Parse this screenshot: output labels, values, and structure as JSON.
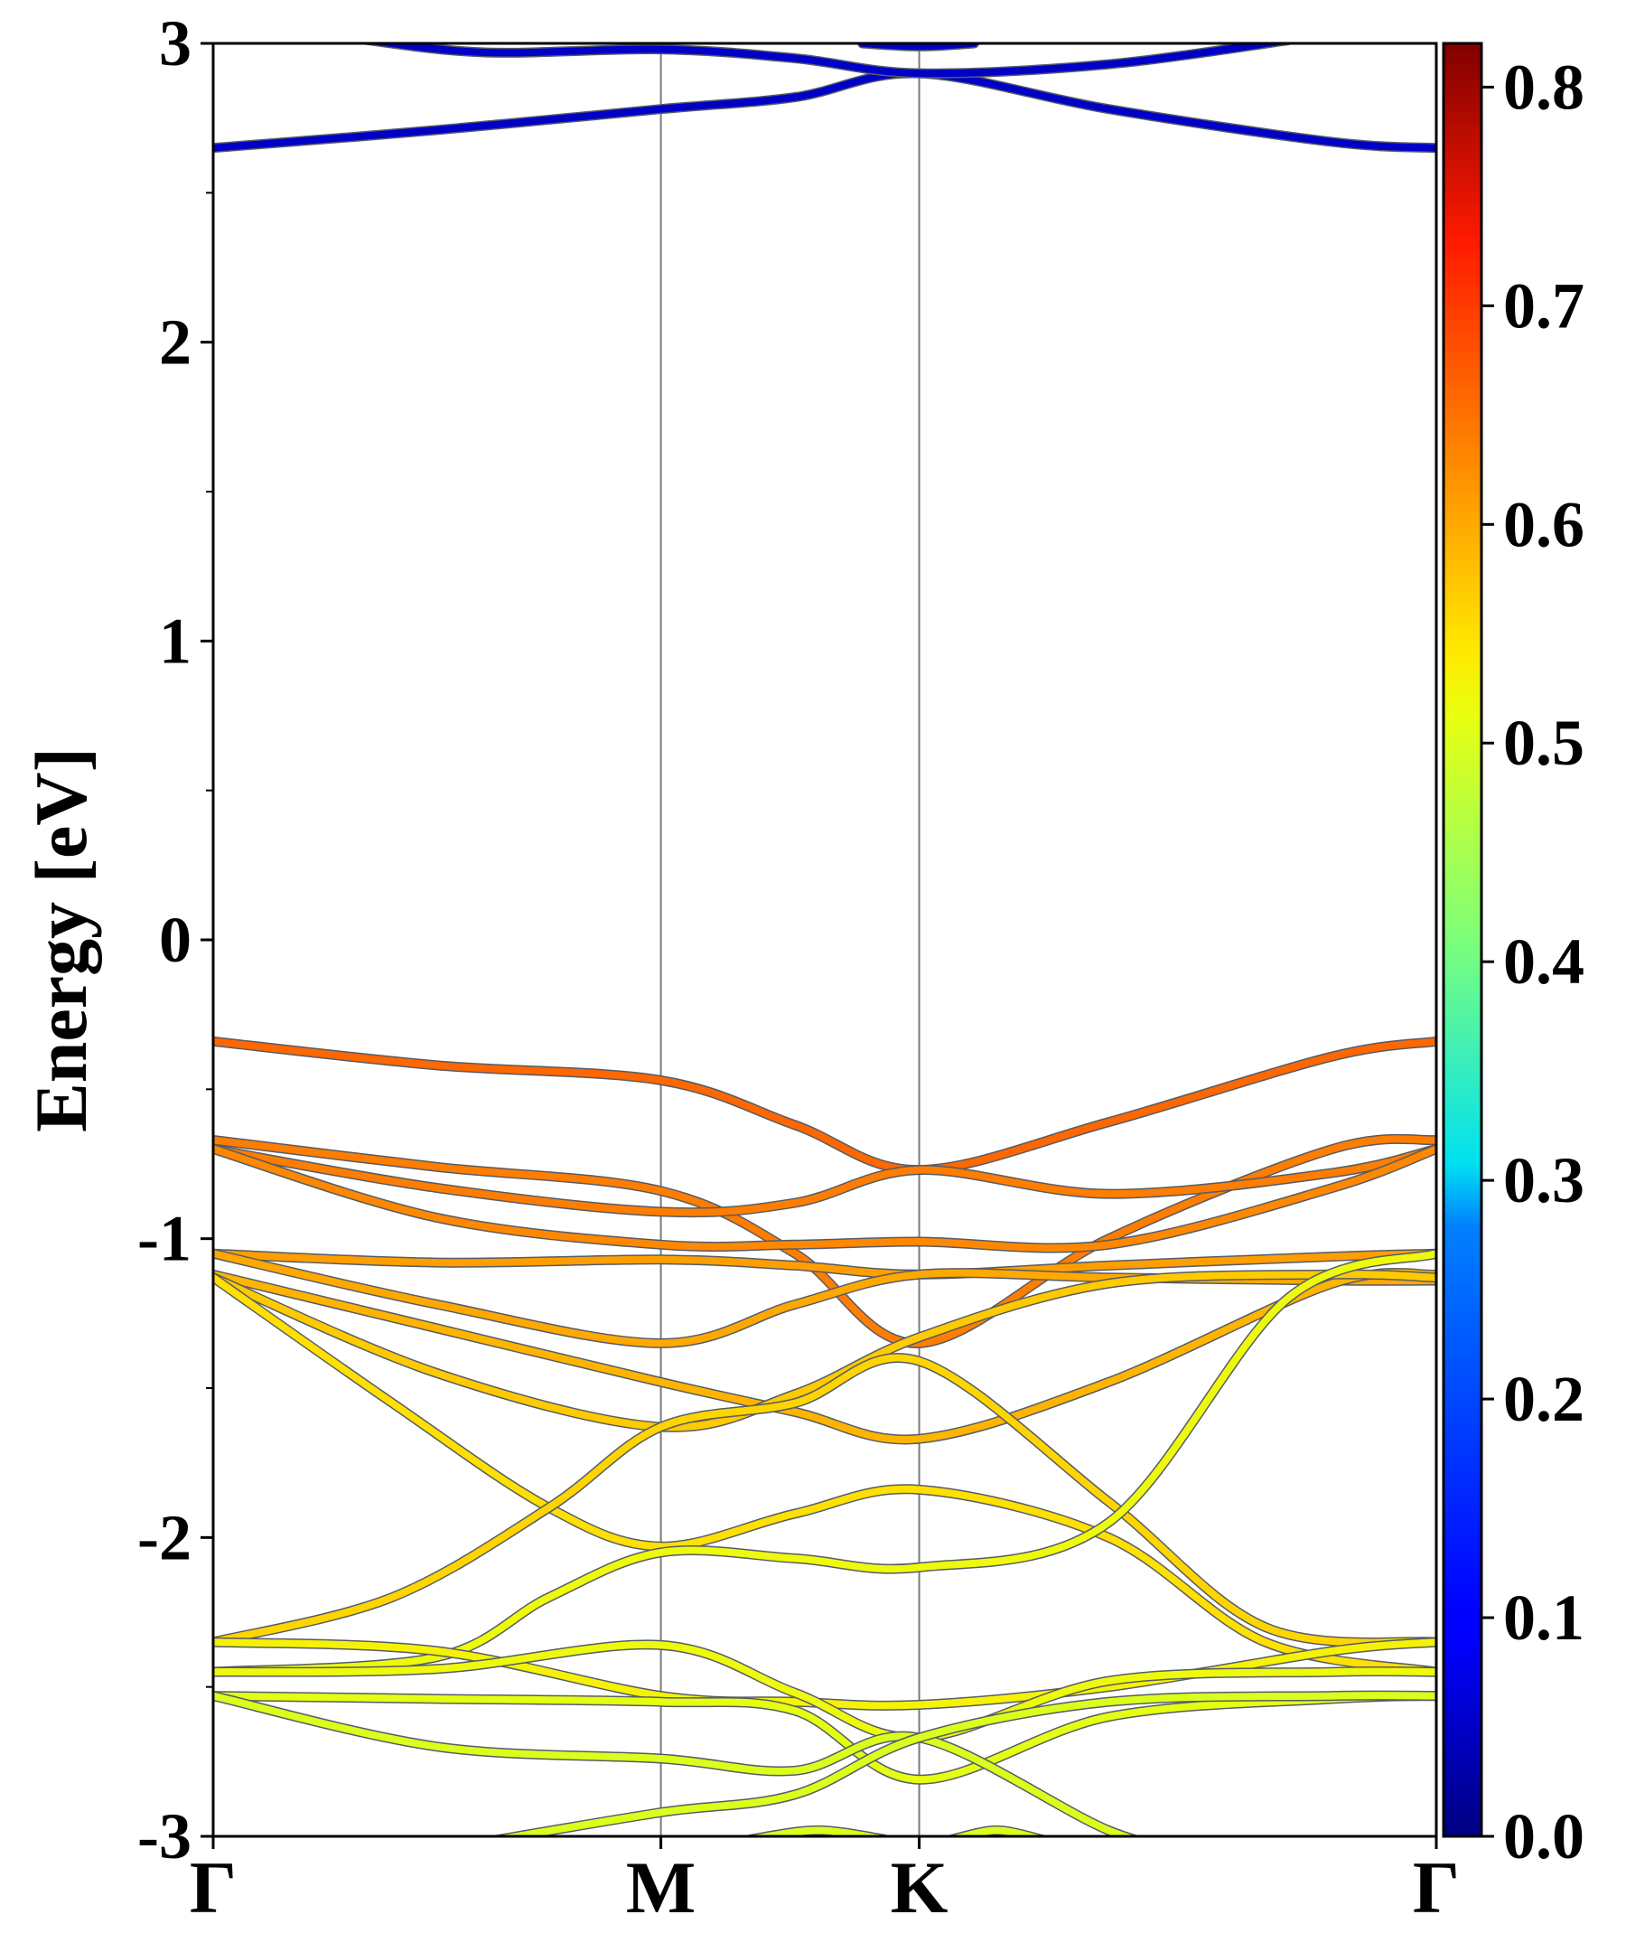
{
  "chart_data": {
    "type": "line",
    "title": "",
    "ylabel": "Energy [eV]",
    "xlabel": "",
    "ylim": [
      -3,
      3
    ],
    "yticks": [
      -3,
      -2,
      -1,
      0,
      1,
      2,
      3
    ],
    "ytick_labels": [
      "-3",
      "-2",
      "-1",
      "0",
      "1",
      "2",
      "3"
    ],
    "x_ticks": [
      {
        "label": "Γ",
        "pos": 0
      },
      {
        "label": "M",
        "pos": 1
      },
      {
        "label": "K",
        "pos": 1.577
      },
      {
        "label": "Γ",
        "pos": 2.732
      }
    ],
    "high_symmetry_lines": [
      "M",
      "K"
    ],
    "colorbar": {
      "colormap": "jet",
      "min": 0.0,
      "max": 0.82,
      "ticks": [
        0.0,
        0.1,
        0.2,
        0.3,
        0.4,
        0.5,
        0.6,
        0.7,
        0.8
      ],
      "tick_labels": [
        "0.0",
        "0.1",
        "0.2",
        "0.3",
        "0.4",
        "0.5",
        "0.6",
        "0.7",
        "0.8"
      ]
    },
    "series": [
      {
        "weight": 0.05,
        "points": [
          [
            0.0,
            2.65
          ],
          [
            0.5,
            2.71
          ],
          [
            1.0,
            2.78
          ],
          [
            1.3,
            2.82
          ],
          [
            1.577,
            2.9
          ],
          [
            2.0,
            2.78
          ],
          [
            2.5,
            2.67
          ],
          [
            2.732,
            2.65
          ]
        ]
      },
      {
        "weight": 0.05,
        "points": [
          [
            0.3,
            3.02
          ],
          [
            0.6,
            2.97
          ],
          [
            1.0,
            2.98
          ],
          [
            1.3,
            2.95
          ],
          [
            1.577,
            2.9
          ],
          [
            2.0,
            2.93
          ],
          [
            2.4,
            3.01
          ]
        ]
      },
      {
        "weight": 0.05,
        "points": [
          [
            1.45,
            3.0
          ],
          [
            1.577,
            2.99
          ],
          [
            1.7,
            3.0
          ]
        ]
      },
      {
        "weight": 0.66,
        "points": [
          [
            0.0,
            -0.34
          ],
          [
            0.5,
            -0.42
          ],
          [
            1.0,
            -0.47
          ],
          [
            1.3,
            -0.62
          ],
          [
            1.577,
            -0.77
          ],
          [
            2.0,
            -0.61
          ],
          [
            2.5,
            -0.39
          ],
          [
            2.732,
            -0.34
          ]
        ]
      },
      {
        "weight": 0.64,
        "points": [
          [
            0.0,
            -0.67
          ],
          [
            0.5,
            -0.76
          ],
          [
            1.0,
            -0.84
          ],
          [
            1.3,
            -1.05
          ],
          [
            1.577,
            -1.35
          ],
          [
            2.0,
            -1.0
          ],
          [
            2.5,
            -0.7
          ],
          [
            2.732,
            -0.67
          ]
        ]
      },
      {
        "weight": 0.64,
        "points": [
          [
            0.0,
            -0.7
          ],
          [
            0.5,
            -0.83
          ],
          [
            1.0,
            -0.91
          ],
          [
            1.3,
            -0.88
          ],
          [
            1.577,
            -0.77
          ],
          [
            2.0,
            -0.85
          ],
          [
            2.5,
            -0.78
          ],
          [
            2.732,
            -0.7
          ]
        ]
      },
      {
        "weight": 0.63,
        "points": [
          [
            0.0,
            -0.7
          ],
          [
            0.5,
            -0.93
          ],
          [
            1.0,
            -1.02
          ],
          [
            1.3,
            -1.02
          ],
          [
            1.577,
            -1.01
          ],
          [
            2.0,
            -1.02
          ],
          [
            2.5,
            -0.83
          ],
          [
            2.732,
            -0.7
          ]
        ]
      },
      {
        "weight": 0.61,
        "points": [
          [
            0.0,
            -1.05
          ],
          [
            0.5,
            -1.08
          ],
          [
            1.0,
            -1.07
          ],
          [
            1.3,
            -1.09
          ],
          [
            1.577,
            -1.12
          ],
          [
            2.0,
            -1.09
          ],
          [
            2.5,
            -1.06
          ],
          [
            2.732,
            -1.05
          ]
        ]
      },
      {
        "weight": 0.6,
        "points": [
          [
            0.0,
            -1.05
          ],
          [
            0.5,
            -1.22
          ],
          [
            1.0,
            -1.35
          ],
          [
            1.3,
            -1.22
          ],
          [
            1.577,
            -1.12
          ],
          [
            2.0,
            -1.13
          ],
          [
            2.5,
            -1.14
          ],
          [
            2.732,
            -1.14
          ]
        ]
      },
      {
        "weight": 0.59,
        "points": [
          [
            0.0,
            -1.12
          ],
          [
            0.5,
            -1.3
          ],
          [
            1.0,
            -1.48
          ],
          [
            1.3,
            -1.58
          ],
          [
            1.577,
            -1.67
          ],
          [
            2.0,
            -1.48
          ],
          [
            2.5,
            -1.15
          ],
          [
            2.732,
            -1.12
          ]
        ]
      },
      {
        "weight": 0.57,
        "points": [
          [
            0.0,
            -1.13
          ],
          [
            0.5,
            -1.45
          ],
          [
            1.0,
            -1.63
          ],
          [
            1.3,
            -1.52
          ],
          [
            1.577,
            -1.33
          ],
          [
            2.0,
            -1.15
          ],
          [
            2.5,
            -1.12
          ],
          [
            2.732,
            -1.13
          ]
        ]
      },
      {
        "weight": 0.55,
        "points": [
          [
            0.0,
            -1.13
          ],
          [
            0.4,
            -1.55
          ],
          [
            0.75,
            -1.9
          ],
          [
            1.0,
            -2.03
          ],
          [
            1.3,
            -1.92
          ],
          [
            1.577,
            -1.84
          ],
          [
            2.0,
            -2.0
          ],
          [
            2.35,
            -2.35
          ],
          [
            2.732,
            -2.45
          ]
        ]
      },
      {
        "weight": 0.56,
        "points": [
          [
            0.0,
            -2.35
          ],
          [
            0.4,
            -2.2
          ],
          [
            0.75,
            -1.9
          ],
          [
            1.0,
            -1.63
          ],
          [
            1.3,
            -1.55
          ],
          [
            1.577,
            -1.41
          ],
          [
            2.0,
            -1.88
          ],
          [
            2.35,
            -2.3
          ],
          [
            2.732,
            -2.35
          ]
        ]
      },
      {
        "weight": 0.52,
        "points": [
          [
            0.0,
            -2.45
          ],
          [
            0.5,
            -2.4
          ],
          [
            0.75,
            -2.2
          ],
          [
            1.0,
            -2.05
          ],
          [
            1.3,
            -2.07
          ],
          [
            1.577,
            -2.1
          ],
          [
            2.0,
            -1.95
          ],
          [
            2.4,
            -1.2
          ],
          [
            2.732,
            -1.05
          ]
        ]
      },
      {
        "weight": 0.53,
        "points": [
          [
            0.0,
            -2.35
          ],
          [
            0.5,
            -2.38
          ],
          [
            1.0,
            -2.53
          ],
          [
            1.3,
            -2.55
          ],
          [
            1.577,
            -2.56
          ],
          [
            2.0,
            -2.5
          ],
          [
            2.5,
            -2.38
          ],
          [
            2.732,
            -2.35
          ]
        ]
      },
      {
        "weight": 0.52,
        "points": [
          [
            0.0,
            -2.45
          ],
          [
            0.5,
            -2.44
          ],
          [
            1.0,
            -2.36
          ],
          [
            1.3,
            -2.52
          ],
          [
            1.577,
            -2.67
          ],
          [
            2.0,
            -2.48
          ],
          [
            2.5,
            -2.45
          ],
          [
            2.732,
            -2.45
          ]
        ]
      },
      {
        "weight": 0.51,
        "points": [
          [
            0.0,
            -2.53
          ],
          [
            0.5,
            -2.54
          ],
          [
            1.0,
            -2.55
          ],
          [
            1.3,
            -2.58
          ],
          [
            1.577,
            -2.81
          ],
          [
            2.0,
            -2.6
          ],
          [
            2.5,
            -2.54
          ],
          [
            2.732,
            -2.53
          ]
        ]
      },
      {
        "weight": 0.5,
        "points": [
          [
            0.0,
            -2.53
          ],
          [
            0.5,
            -2.7
          ],
          [
            1.0,
            -2.74
          ],
          [
            1.3,
            -2.78
          ],
          [
            1.577,
            -2.67
          ],
          [
            2.0,
            -2.98
          ],
          [
            2.2,
            -3.05
          ]
        ]
      },
      {
        "weight": 0.5,
        "points": [
          [
            0.6,
            -3.02
          ],
          [
            1.0,
            -2.92
          ],
          [
            1.3,
            -2.86
          ],
          [
            1.577,
            -2.67
          ],
          [
            2.0,
            -2.55
          ],
          [
            2.5,
            -2.53
          ],
          [
            2.732,
            -2.53
          ]
        ]
      },
      {
        "weight": 0.5,
        "points": [
          [
            1.2,
            -3.01
          ],
          [
            1.35,
            -2.98
          ],
          [
            1.5,
            -3.01
          ]
        ]
      },
      {
        "weight": 0.5,
        "points": [
          [
            1.65,
            -3.01
          ],
          [
            1.75,
            -2.98
          ],
          [
            1.85,
            -3.01
          ]
        ]
      }
    ]
  }
}
